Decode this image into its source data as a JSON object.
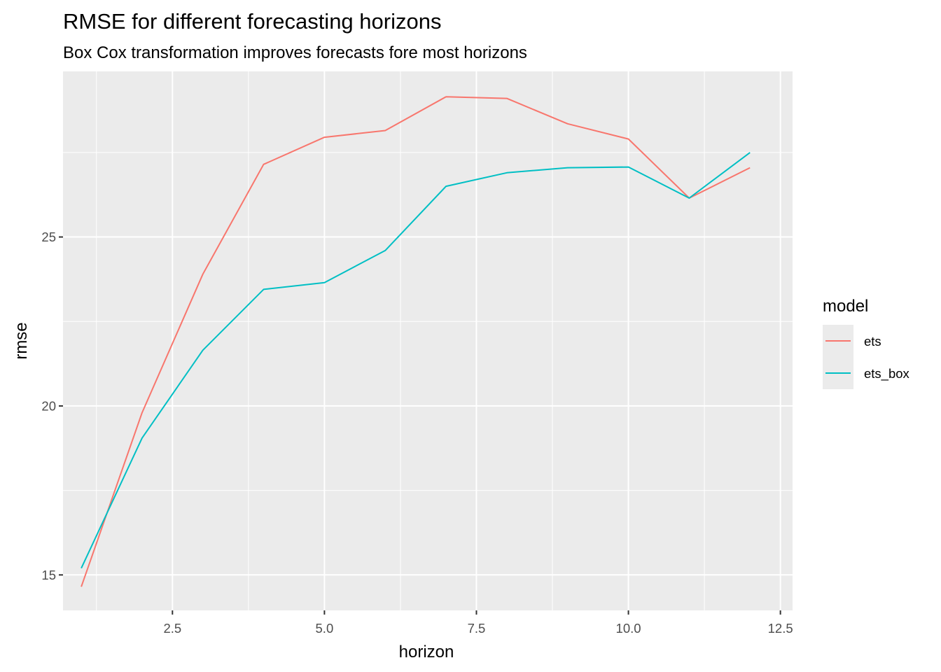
{
  "chart_data": {
    "type": "line",
    "title": "RMSE for different forecasting horizons",
    "subtitle": "Box Cox transformation improves forecasts fore most horizons",
    "xlabel": "horizon",
    "ylabel": "rmse",
    "xlim": [
      0.7,
      12.7
    ],
    "ylim": [
      13.95,
      29.9
    ],
    "x_ticks": [
      2.5,
      5.0,
      7.5,
      10.0,
      12.5
    ],
    "x_tick_labels": [
      "2.5",
      "5.0",
      "7.5",
      "10.0",
      "12.5"
    ],
    "y_ticks": [
      15,
      20,
      25
    ],
    "y_tick_labels": [
      "15",
      "20",
      "25"
    ],
    "grid": true,
    "legend": {
      "title": "model",
      "position": "right"
    },
    "series": [
      {
        "name": "ets",
        "color": "#F8766D",
        "x": [
          1,
          2,
          3,
          4,
          5,
          6,
          7,
          8,
          9,
          10,
          11,
          12
        ],
        "y": [
          14.65,
          19.8,
          23.9,
          27.15,
          27.95,
          28.15,
          29.15,
          29.1,
          28.35,
          27.9,
          26.15,
          27.05
        ]
      },
      {
        "name": "ets_box",
        "color": "#00BFC4",
        "x": [
          1,
          2,
          3,
          4,
          5,
          6,
          7,
          8,
          9,
          10,
          11,
          12
        ],
        "y": [
          15.2,
          19.05,
          21.65,
          23.45,
          23.65,
          24.6,
          26.5,
          26.9,
          27.05,
          27.07,
          26.15,
          27.5
        ]
      }
    ]
  }
}
